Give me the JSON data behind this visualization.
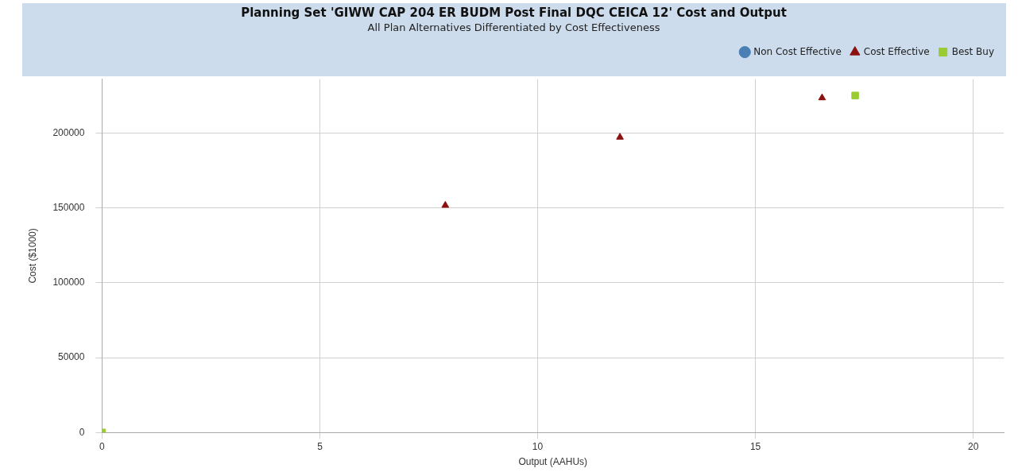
{
  "chart_data": {
    "type": "scatter",
    "title": "Planning Set 'GIWW CAP 204 ER BUDM Post Final DQC CEICA 12' Cost and Output",
    "subtitle": "All Plan Alternatives Differentiated by Cost Effectiveness",
    "xlabel": "Output (AAHUs)",
    "ylabel": "Cost ($1000)",
    "xlim": [
      0,
      20.7
    ],
    "xticks": [
      0,
      5,
      10,
      15,
      20
    ],
    "ylim": [
      0,
      236000
    ],
    "yticks": [
      0,
      50000,
      100000,
      150000,
      200000
    ],
    "grid": true,
    "legend": "top right",
    "series": [
      {
        "name": "Non Cost Effective",
        "color": "#4a7fb5",
        "marker": "circle"
      },
      {
        "name": "Cost Effective",
        "color": "#8b1010",
        "marker": "triangle",
        "x": [
          7.88,
          11.89,
          16.53
        ],
        "values": [
          151700,
          197200,
          223500
        ]
      },
      {
        "name": "Best Buy",
        "color": "#99cc33",
        "marker": "square",
        "x": [
          0,
          17.29
        ],
        "values": [
          0,
          225100
        ]
      }
    ]
  }
}
